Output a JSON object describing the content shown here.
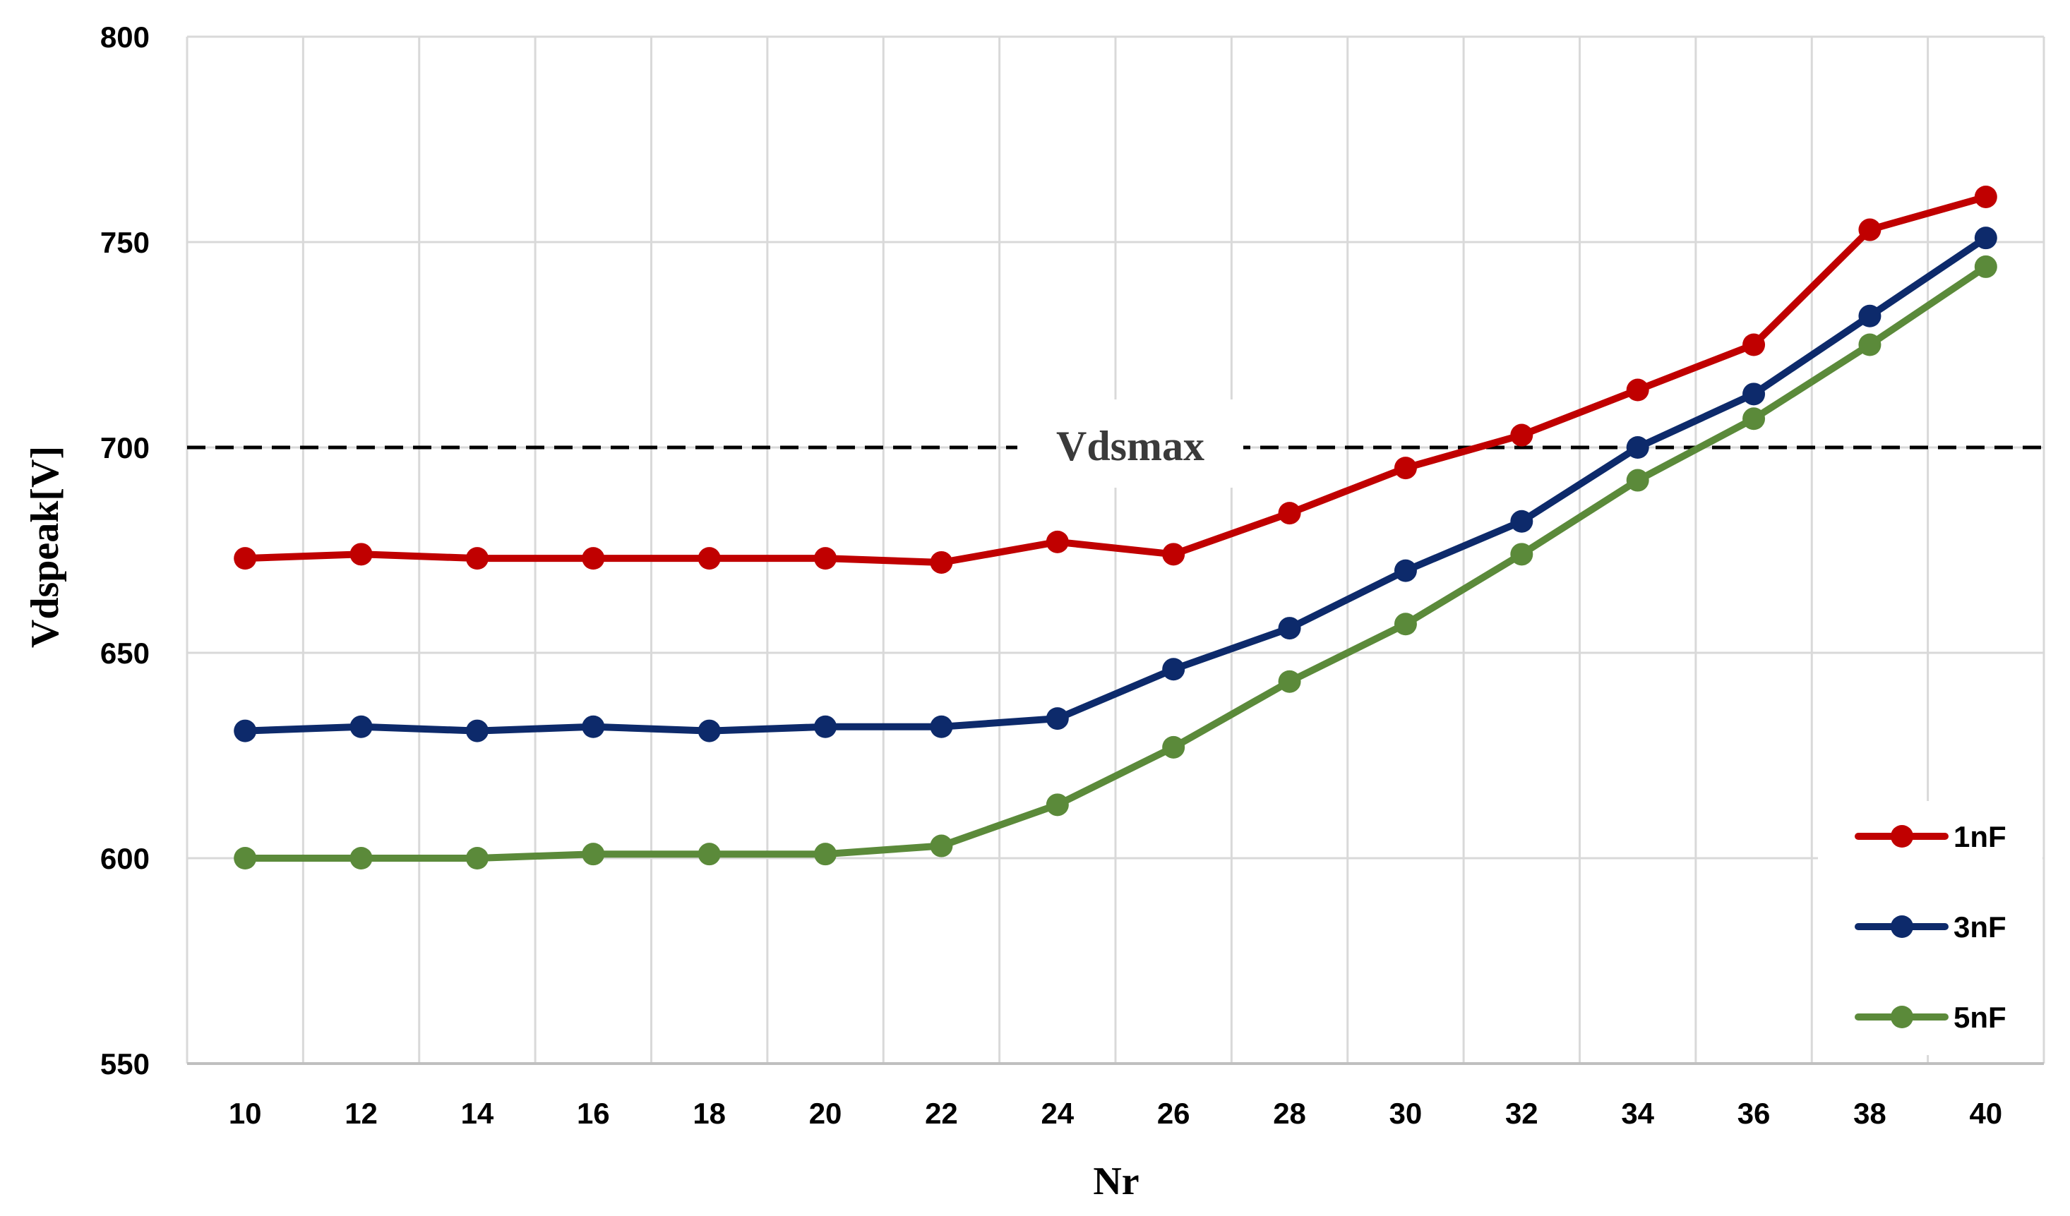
{
  "chart_data": {
    "type": "line",
    "xlabel": "Nr",
    "ylabel": "Vdspeak[V]",
    "x": [
      10,
      12,
      14,
      16,
      18,
      20,
      22,
      24,
      26,
      28,
      30,
      32,
      34,
      36,
      38,
      40
    ],
    "ylim": [
      550,
      800
    ],
    "yticks": [
      550,
      600,
      650,
      700,
      750,
      800
    ],
    "grid": true,
    "legend_position": "bottom-right",
    "series": [
      {
        "name": "1nF",
        "color": "#c00000",
        "values": [
          673,
          674,
          673,
          673,
          673,
          673,
          672,
          677,
          674,
          684,
          695,
          703,
          714,
          725,
          753,
          761
        ]
      },
      {
        "name": "3nF",
        "color": "#0d2a6b",
        "values": [
          631,
          632,
          631,
          632,
          631,
          632,
          632,
          634,
          646,
          656,
          670,
          682,
          700,
          713,
          732,
          751
        ]
      },
      {
        "name": "5nF",
        "color": "#5b8a3a",
        "values": [
          600,
          600,
          600,
          601,
          601,
          601,
          603,
          613,
          627,
          643,
          657,
          674,
          692,
          707,
          725,
          744
        ]
      }
    ],
    "reference_line": {
      "label": "Vdsmax",
      "y": 700,
      "style": "dashed",
      "color": "#000000"
    }
  }
}
